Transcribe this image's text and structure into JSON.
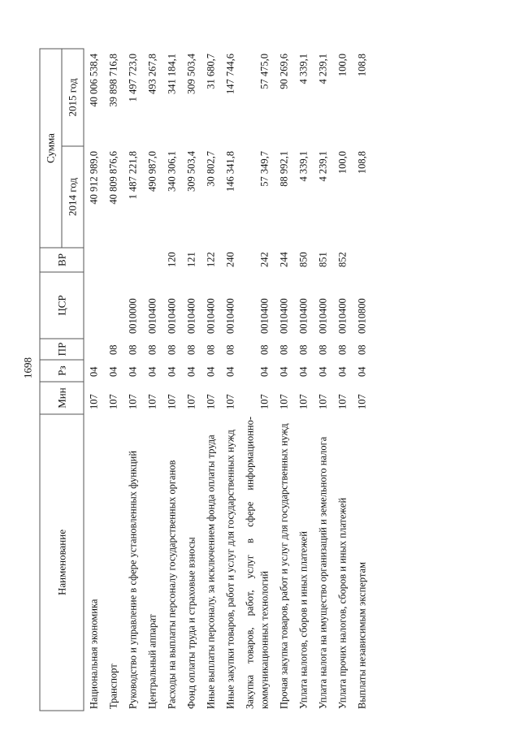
{
  "page_number": "1698",
  "headers": {
    "name": "Наименование",
    "min": "Мин",
    "rz": "Рз",
    "pr": "ПР",
    "csr": "ЦСР",
    "vr": "ВР",
    "sum": "Сумма",
    "y2014": "2014 год",
    "y2015": "2015 год"
  },
  "rows": [
    {
      "name": "Национальная экономика",
      "min": "107",
      "rz": "04",
      "pr": "",
      "csr": "",
      "vr": "",
      "y2014": "40 912 989,0",
      "y2015": "40 006 538,4"
    },
    {
      "name": "Транспорт",
      "min": "107",
      "rz": "04",
      "pr": "08",
      "csr": "",
      "vr": "",
      "y2014": "40 809 876,6",
      "y2015": "39 898 716,8"
    },
    {
      "name": "Руководство и управление в сфере установленных функций",
      "min": "107",
      "rz": "04",
      "pr": "08",
      "csr": "0010000",
      "vr": "",
      "y2014": "1 487 221,8",
      "y2015": "1 497 723,0"
    },
    {
      "name": "Центральный аппарат",
      "min": "107",
      "rz": "04",
      "pr": "08",
      "csr": "0010400",
      "vr": "",
      "y2014": "490 987,0",
      "y2015": "493 267,8"
    },
    {
      "name": "Расходы на выплаты персоналу государственных органов",
      "min": "107",
      "rz": "04",
      "pr": "08",
      "csr": "0010400",
      "vr": "120",
      "y2014": "340 306,1",
      "y2015": "341 184,1"
    },
    {
      "name": "Фонд оплаты труда и страховые взносы",
      "min": "107",
      "rz": "04",
      "pr": "08",
      "csr": "0010400",
      "vr": "121",
      "y2014": "309 503,4",
      "y2015": "309 503,4"
    },
    {
      "name": "Иные выплаты персоналу, за исключением фонда оплаты труда",
      "min": "107",
      "rz": "04",
      "pr": "08",
      "csr": "0010400",
      "vr": "122",
      "y2014": "30 802,7",
      "y2015": "31 680,7"
    },
    {
      "name": "Иные закупки товаров, работ и услуг для государственных нужд",
      "min": "107",
      "rz": "04",
      "pr": "08",
      "csr": "0010400",
      "vr": "240",
      "y2014": "146 341,8",
      "y2015": "147 744,6"
    },
    {
      "name": "Закупка товаров, работ, услуг в сфере информационно-коммуникационных технологий",
      "min": "107",
      "rz": "04",
      "pr": "08",
      "csr": "0010400",
      "vr": "242",
      "y2014": "57 349,7",
      "y2015": "57 475,0"
    },
    {
      "name": "Прочая закупка товаров, работ и услуг для государственных нужд",
      "min": "107",
      "rz": "04",
      "pr": "08",
      "csr": "0010400",
      "vr": "244",
      "y2014": "88 992,1",
      "y2015": "90 269,6"
    },
    {
      "name": "Уплата налогов, сборов и иных платежей",
      "min": "107",
      "rz": "04",
      "pr": "08",
      "csr": "0010400",
      "vr": "850",
      "y2014": "4 339,1",
      "y2015": "4 339,1"
    },
    {
      "name": "Уплата налога на имущество организаций и земельного налога",
      "min": "107",
      "rz": "04",
      "pr": "08",
      "csr": "0010400",
      "vr": "851",
      "y2014": "4 239,1",
      "y2015": "4 239,1"
    },
    {
      "name": "Уплата прочих налогов, сборов и иных платежей",
      "min": "107",
      "rz": "04",
      "pr": "08",
      "csr": "0010400",
      "vr": "852",
      "y2014": "100,0",
      "y2015": "100,0"
    },
    {
      "name": "Выплаты независимым экспертам",
      "min": "107",
      "rz": "04",
      "pr": "08",
      "csr": "0010800",
      "vr": "",
      "y2014": "108,8",
      "y2015": "108,8"
    }
  ]
}
